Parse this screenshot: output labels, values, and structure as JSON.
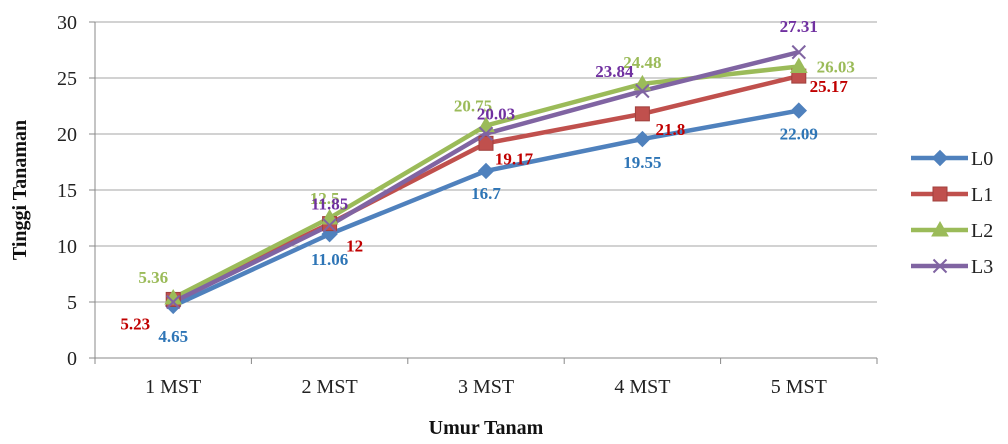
{
  "chart_data": {
    "type": "line",
    "title": "",
    "xlabel": "Umur Tanam",
    "ylabel": "Tinggi Tanaman",
    "categories": [
      "1 MST",
      "2 MST",
      "3 MST",
      "4 MST",
      "5 MST"
    ],
    "ylim": [
      0,
      30
    ],
    "yticks": [
      "0",
      "5",
      "10",
      "15",
      "20",
      "25",
      "30"
    ],
    "grid": true,
    "legend": "right",
    "series": [
      {
        "name": "L0",
        "values": [
          4.65,
          11.06,
          16.7,
          19.55,
          22.09
        ],
        "labels": [
          "4.65",
          "11.06",
          "16.7",
          "19.55",
          "22.09"
        ],
        "color": "#4f81bd",
        "label_color": "#2e75b6",
        "marker": "diamond"
      },
      {
        "name": "L1",
        "values": [
          5.23,
          12,
          19.17,
          21.8,
          25.17
        ],
        "labels": [
          "5.23",
          "12",
          "19.17",
          "21.8",
          "25.17"
        ],
        "color": "#c0504d",
        "label_color": "#c00000",
        "marker": "square"
      },
      {
        "name": "L2",
        "values": [
          5.36,
          12.5,
          20.75,
          24.48,
          26.03
        ],
        "labels": [
          "5.36",
          "12.5",
          "20.75",
          "24.48",
          "26.03"
        ],
        "color": "#9bbb59",
        "label_color": "#9bbb59",
        "marker": "triangle"
      },
      {
        "name": "L3",
        "values": [
          5.0,
          11.85,
          20.03,
          23.84,
          27.31
        ],
        "labels": [
          "",
          "11.85",
          "20.03",
          "23.84",
          "27.31"
        ],
        "color": "#8064a2",
        "label_color": "#7030a0",
        "marker": "x"
      }
    ]
  }
}
